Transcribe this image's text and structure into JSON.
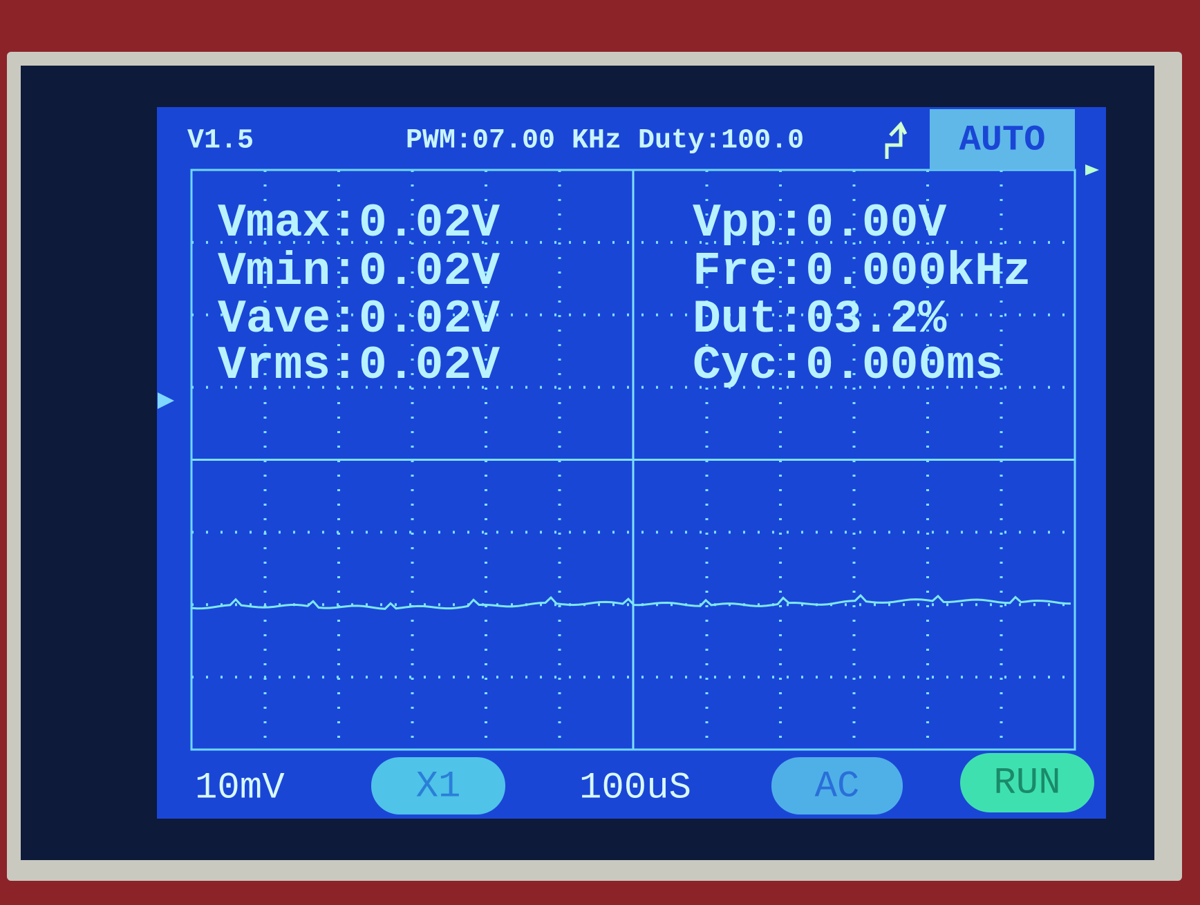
{
  "header": {
    "version": "V1.5",
    "pwm": "PWM:07.00 KHz Duty:100.0",
    "trigger_mode": "AUTO"
  },
  "measurements": {
    "left": [
      "Vmax:0.02V",
      "Vmin:0.02V",
      "Vave:0.02V",
      "Vrms:0.02V"
    ],
    "right": [
      "Vpp:0.00V",
      "Fre:0.000kHz",
      "Dut:03.2%",
      "Cyc:0.000ms"
    ]
  },
  "footer": {
    "volts_per_div": "10mV",
    "probe": "X1",
    "time_per_div": "100uS",
    "coupling": "AC",
    "state": "RUN"
  }
}
